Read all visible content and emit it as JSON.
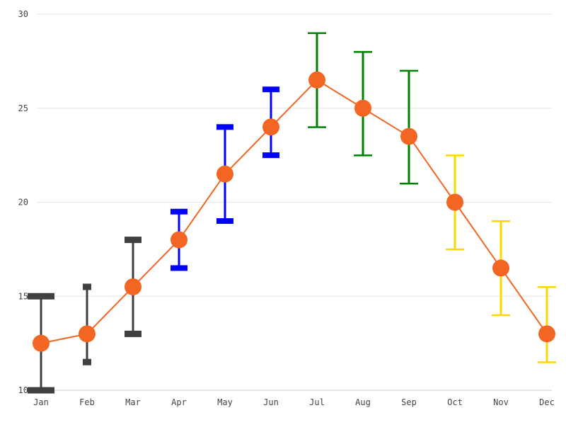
{
  "chart_data": {
    "type": "line",
    "title": "",
    "xlabel": "",
    "ylabel": "",
    "categories": [
      "Jan",
      "Feb",
      "Mar",
      "Apr",
      "May",
      "Jun",
      "Jul",
      "Aug",
      "Sep",
      "Oct",
      "Nov",
      "Dec"
    ],
    "ylim": [
      10,
      30
    ],
    "yticks": [
      10,
      15,
      20,
      25,
      30
    ],
    "grid": "horizontal",
    "legend": "none",
    "series": [
      {
        "values": [
          12.5,
          13,
          15.5,
          18,
          21.5,
          24,
          26.5,
          25,
          23.5,
          20,
          16.5,
          13
        ],
        "color": "#f26522",
        "error_low": [
          10,
          11.5,
          13,
          16.5,
          19,
          22.5,
          24,
          22.5,
          21,
          17.5,
          14,
          11.5
        ],
        "error_high": [
          15,
          15.5,
          18,
          19.5,
          24,
          26,
          29,
          28,
          27,
          22.5,
          19,
          15.5
        ],
        "error_colors": [
          "#404040",
          "#404040",
          "#404040",
          "#0000ff",
          "#0000ff",
          "#0000ff",
          "#008000",
          "#008000",
          "#008000",
          "#ffd700",
          "#ffd700",
          "#ffd700"
        ]
      }
    ]
  }
}
